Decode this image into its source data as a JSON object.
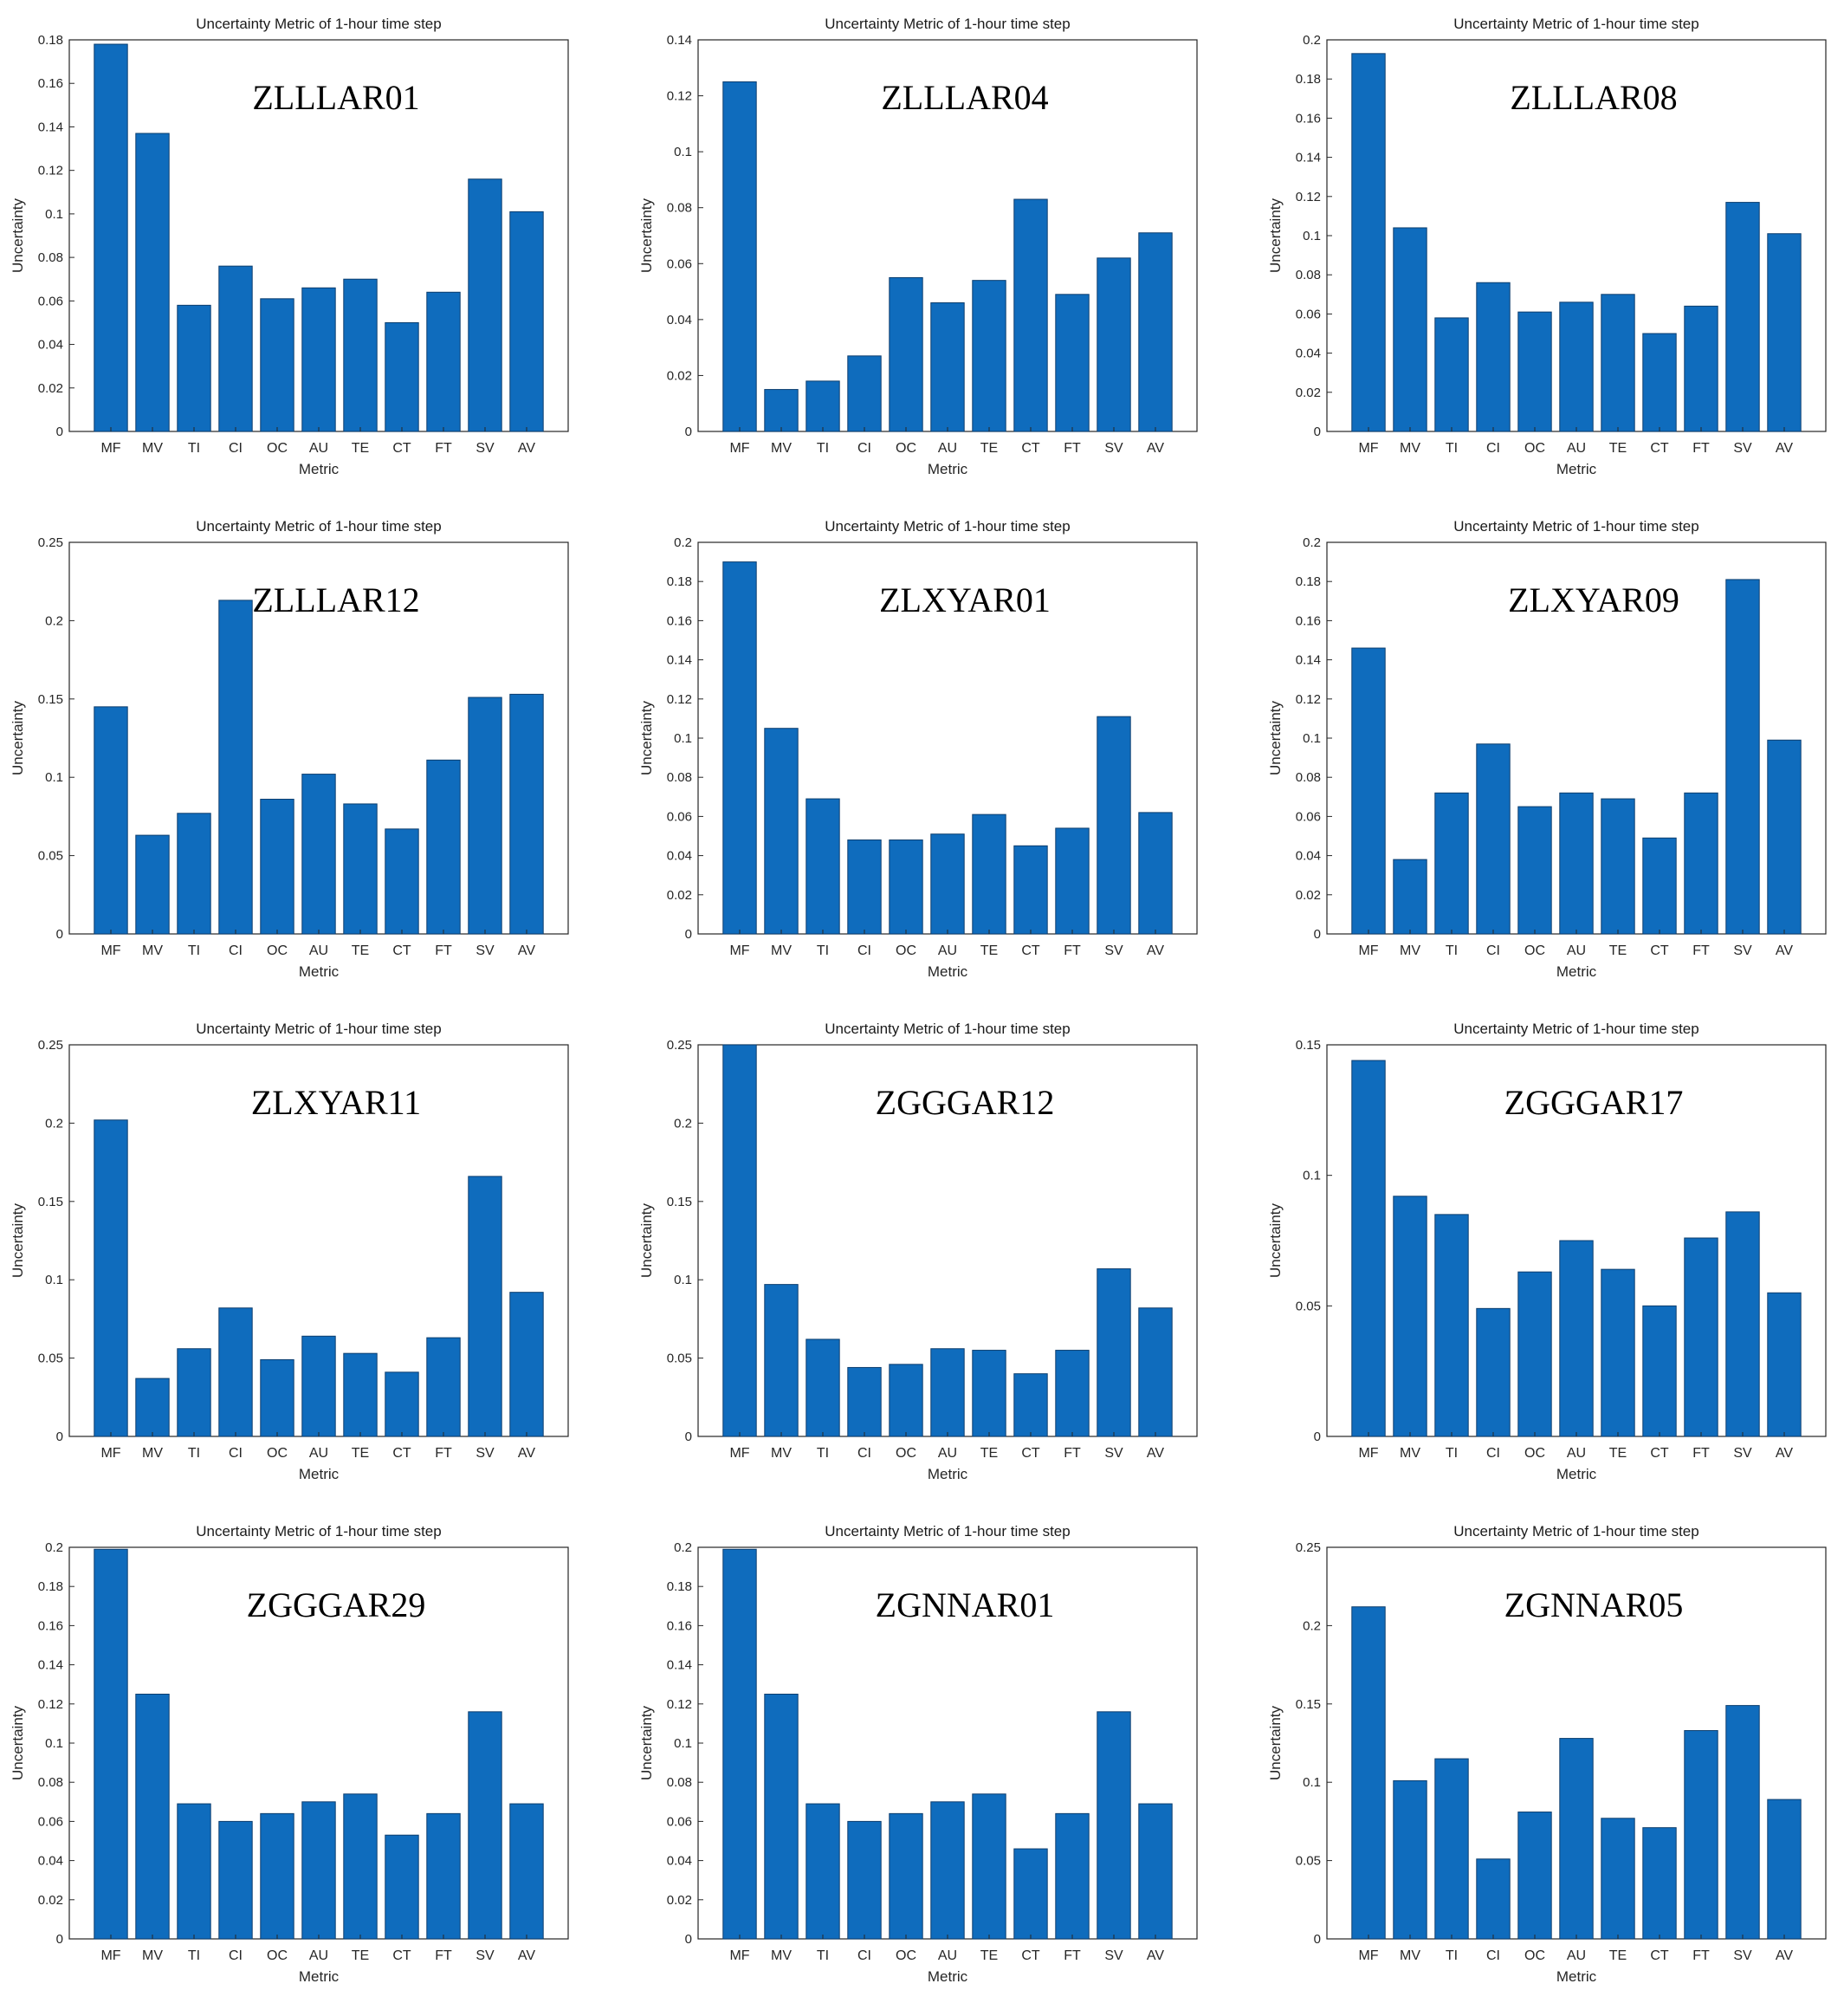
{
  "style": {
    "bar_color": "#0f6cbd",
    "bar_edge": "#0b3d6e",
    "axis_color": "#262626",
    "background": "#ffffff"
  },
  "chart_data": [
    {
      "type": "bar",
      "title": "Uncertainty Metric of 1-hour time step",
      "station": "ZLLLAR01",
      "xlabel": "Metric",
      "ylabel": "Uncertainty",
      "categories": [
        "MF",
        "MV",
        "TI",
        "CI",
        "OC",
        "AU",
        "TE",
        "CT",
        "FT",
        "SV",
        "AV"
      ],
      "values": [
        0.178,
        0.137,
        0.058,
        0.076,
        0.061,
        0.066,
        0.07,
        0.05,
        0.064,
        0.116,
        0.101
      ],
      "ylim": [
        0,
        0.18
      ],
      "yticks": [
        0,
        0.02,
        0.04,
        0.06,
        0.08,
        0.1,
        0.12,
        0.14,
        0.16,
        0.18
      ],
      "ytick_labels": [
        "0",
        "0.02",
        "0.04",
        "0.06",
        "0.08",
        "0.1",
        "0.12",
        "0.14",
        "0.16",
        "0.18"
      ]
    },
    {
      "type": "bar",
      "title": "Uncertainty Metric of 1-hour time step",
      "station": "ZLLLAR04",
      "xlabel": "Metric",
      "ylabel": "Uncertainty",
      "categories": [
        "MF",
        "MV",
        "TI",
        "CI",
        "OC",
        "AU",
        "TE",
        "CT",
        "FT",
        "SV",
        "AV"
      ],
      "values": [
        0.125,
        0.015,
        0.018,
        0.027,
        0.055,
        0.046,
        0.054,
        0.083,
        0.049,
        0.062,
        0.071
      ],
      "ylim": [
        0,
        0.14
      ],
      "yticks": [
        0,
        0.02,
        0.04,
        0.06,
        0.08,
        0.1,
        0.12,
        0.14
      ],
      "ytick_labels": [
        "0",
        "0.02",
        "0.04",
        "0.06",
        "0.08",
        "0.1",
        "0.12",
        "0.14"
      ]
    },
    {
      "type": "bar",
      "title": "Uncertainty Metric of 1-hour time step",
      "station": "ZLLLAR08",
      "xlabel": "Metric",
      "ylabel": "Uncertainty",
      "categories": [
        "MF",
        "MV",
        "TI",
        "CI",
        "OC",
        "AU",
        "TE",
        "CT",
        "FT",
        "SV",
        "AV"
      ],
      "values": [
        0.193,
        0.104,
        0.058,
        0.076,
        0.061,
        0.066,
        0.07,
        0.05,
        0.064,
        0.117,
        0.101
      ],
      "ylim": [
        0,
        0.2
      ],
      "yticks": [
        0,
        0.02,
        0.04,
        0.06,
        0.08,
        0.1,
        0.12,
        0.14,
        0.16,
        0.18,
        0.2
      ],
      "ytick_labels": [
        "0",
        "0.02",
        "0.04",
        "0.06",
        "0.08",
        "0.1",
        "0.12",
        "0.14",
        "0.16",
        "0.18",
        "0.2"
      ]
    },
    {
      "type": "bar",
      "title": "Uncertainty Metric of 1-hour time step",
      "station": "ZLLLAR12",
      "xlabel": "Metric",
      "ylabel": "Uncertainty",
      "categories": [
        "MF",
        "MV",
        "TI",
        "CI",
        "OC",
        "AU",
        "TE",
        "CT",
        "FT",
        "SV",
        "AV"
      ],
      "values": [
        0.145,
        0.063,
        0.077,
        0.213,
        0.086,
        0.102,
        0.083,
        0.067,
        0.111,
        0.151,
        0.153
      ],
      "ylim": [
        0,
        0.25
      ],
      "yticks": [
        0,
        0.05,
        0.1,
        0.15,
        0.2,
        0.25
      ],
      "ytick_labels": [
        "0",
        "0.05",
        "0.1",
        "0.15",
        "0.2",
        "0.25"
      ]
    },
    {
      "type": "bar",
      "title": "Uncertainty Metric of 1-hour time step",
      "station": "ZLXYAR01",
      "xlabel": "Metric",
      "ylabel": "Uncertainty",
      "categories": [
        "MF",
        "MV",
        "TI",
        "CI",
        "OC",
        "AU",
        "TE",
        "CT",
        "FT",
        "SV",
        "AV"
      ],
      "values": [
        0.19,
        0.105,
        0.069,
        0.048,
        0.048,
        0.051,
        0.061,
        0.045,
        0.054,
        0.111,
        0.062
      ],
      "ylim": [
        0,
        0.2
      ],
      "yticks": [
        0,
        0.02,
        0.04,
        0.06,
        0.08,
        0.1,
        0.12,
        0.14,
        0.16,
        0.18,
        0.2
      ],
      "ytick_labels": [
        "0",
        "0.02",
        "0.04",
        "0.06",
        "0.08",
        "0.1",
        "0.12",
        "0.14",
        "0.16",
        "0.18",
        "0.2"
      ]
    },
    {
      "type": "bar",
      "title": "Uncertainty Metric of 1-hour time step",
      "station": "ZLXYAR09",
      "xlabel": "Metric",
      "ylabel": "Uncertainty",
      "categories": [
        "MF",
        "MV",
        "TI",
        "CI",
        "OC",
        "AU",
        "TE",
        "CT",
        "FT",
        "SV",
        "AV"
      ],
      "values": [
        0.146,
        0.038,
        0.072,
        0.097,
        0.065,
        0.072,
        0.069,
        0.049,
        0.072,
        0.181,
        0.099
      ],
      "ylim": [
        0,
        0.2
      ],
      "yticks": [
        0,
        0.02,
        0.04,
        0.06,
        0.08,
        0.1,
        0.12,
        0.14,
        0.16,
        0.18,
        0.2
      ],
      "ytick_labels": [
        "0",
        "0.02",
        "0.04",
        "0.06",
        "0.08",
        "0.1",
        "0.12",
        "0.14",
        "0.16",
        "0.18",
        "0.2"
      ]
    },
    {
      "type": "bar",
      "title": "Uncertainty Metric of 1-hour time step",
      "station": "ZLXYAR11",
      "xlabel": "Metric",
      "ylabel": "Uncertainty",
      "categories": [
        "MF",
        "MV",
        "TI",
        "CI",
        "OC",
        "AU",
        "TE",
        "CT",
        "FT",
        "SV",
        "AV"
      ],
      "values": [
        0.202,
        0.037,
        0.056,
        0.082,
        0.049,
        0.064,
        0.053,
        0.041,
        0.063,
        0.166,
        0.092
      ],
      "ylim": [
        0,
        0.25
      ],
      "yticks": [
        0,
        0.05,
        0.1,
        0.15,
        0.2,
        0.25
      ],
      "ytick_labels": [
        "0",
        "0.05",
        "0.1",
        "0.15",
        "0.2",
        "0.25"
      ]
    },
    {
      "type": "bar",
      "title": "Uncertainty Metric of 1-hour time step",
      "station": "ZGGGAR12",
      "xlabel": "Metric",
      "ylabel": "Uncertainty",
      "categories": [
        "MF",
        "MV",
        "TI",
        "CI",
        "OC",
        "AU",
        "TE",
        "CT",
        "FT",
        "SV",
        "AV"
      ],
      "values": [
        0.25,
        0.097,
        0.062,
        0.044,
        0.046,
        0.056,
        0.055,
        0.04,
        0.055,
        0.107,
        0.082
      ],
      "ylim": [
        0,
        0.25
      ],
      "yticks": [
        0,
        0.05,
        0.1,
        0.15,
        0.2,
        0.25
      ],
      "ytick_labels": [
        "0",
        "0.05",
        "0.1",
        "0.15",
        "0.2",
        "0.25"
      ]
    },
    {
      "type": "bar",
      "title": "Uncertainty Metric of 1-hour time step",
      "station": "ZGGGAR17",
      "xlabel": "Metric",
      "ylabel": "Uncertainty",
      "categories": [
        "MF",
        "MV",
        "TI",
        "CI",
        "OC",
        "AU",
        "TE",
        "CT",
        "FT",
        "SV",
        "AV"
      ],
      "values": [
        0.144,
        0.092,
        0.085,
        0.049,
        0.063,
        0.075,
        0.064,
        0.05,
        0.076,
        0.086,
        0.055
      ],
      "ylim": [
        0,
        0.15
      ],
      "yticks": [
        0,
        0.05,
        0.1,
        0.15
      ],
      "ytick_labels": [
        "0",
        "0.05",
        "0.1",
        "0.15"
      ]
    },
    {
      "type": "bar",
      "title": "Uncertainty Metric of 1-hour time step",
      "station": "ZGGGAR29",
      "xlabel": "Metric",
      "ylabel": "Uncertainty",
      "categories": [
        "MF",
        "MV",
        "TI",
        "CI",
        "OC",
        "AU",
        "TE",
        "CT",
        "FT",
        "SV",
        "AV"
      ],
      "values": [
        0.199,
        0.125,
        0.069,
        0.06,
        0.064,
        0.07,
        0.074,
        0.053,
        0.064,
        0.116,
        0.069
      ],
      "ylim": [
        0,
        0.2
      ],
      "yticks": [
        0,
        0.02,
        0.04,
        0.06,
        0.08,
        0.1,
        0.12,
        0.14,
        0.16,
        0.18,
        0.2
      ],
      "ytick_labels": [
        "0",
        "0.02",
        "0.04",
        "0.06",
        "0.08",
        "0.1",
        "0.12",
        "0.14",
        "0.16",
        "0.18",
        "0.2"
      ]
    },
    {
      "type": "bar",
      "title": "Uncertainty Metric of 1-hour time step",
      "station": "ZGNNAR01",
      "xlabel": "Metric",
      "ylabel": "Uncertainty",
      "categories": [
        "MF",
        "MV",
        "TI",
        "CI",
        "OC",
        "AU",
        "TE",
        "CT",
        "FT",
        "SV",
        "AV"
      ],
      "values": [
        0.199,
        0.125,
        0.069,
        0.06,
        0.064,
        0.07,
        0.074,
        0.046,
        0.064,
        0.116,
        0.069
      ],
      "ylim": [
        0,
        0.2
      ],
      "yticks": [
        0,
        0.02,
        0.04,
        0.06,
        0.08,
        0.1,
        0.12,
        0.14,
        0.16,
        0.18,
        0.2
      ],
      "ytick_labels": [
        "0",
        "0.02",
        "0.04",
        "0.06",
        "0.08",
        "0.1",
        "0.12",
        "0.14",
        "0.16",
        "0.18",
        "0.2"
      ]
    },
    {
      "type": "bar",
      "title": "Uncertainty Metric of 1-hour time step",
      "station": "ZGNNAR05",
      "xlabel": "Metric",
      "ylabel": "Uncertainty",
      "categories": [
        "MF",
        "MV",
        "TI",
        "CI",
        "OC",
        "AU",
        "TE",
        "CT",
        "FT",
        "SV",
        "AV"
      ],
      "values": [
        0.212,
        0.101,
        0.115,
        0.051,
        0.081,
        0.128,
        0.077,
        0.071,
        0.133,
        0.149,
        0.089
      ],
      "ylim": [
        0,
        0.25
      ],
      "yticks": [
        0,
        0.05,
        0.1,
        0.15,
        0.2,
        0.25
      ],
      "ytick_labels": [
        "0",
        "0.05",
        "0.1",
        "0.15",
        "0.2",
        "0.25"
      ]
    }
  ]
}
